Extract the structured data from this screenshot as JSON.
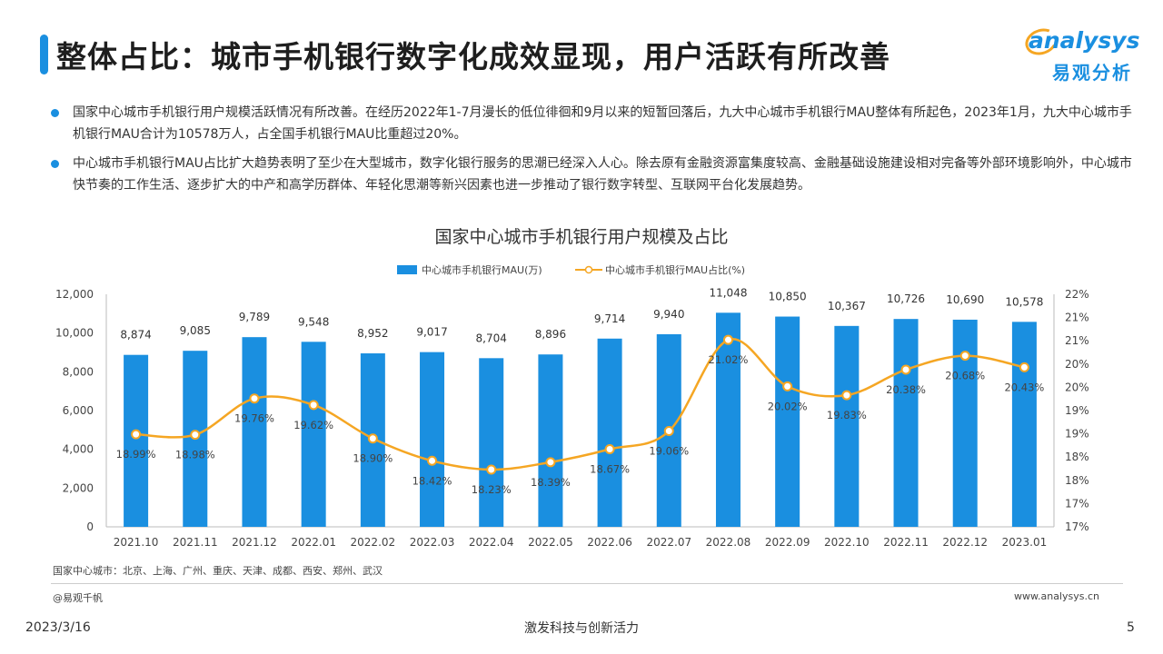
{
  "header": {
    "title": "整体占比：城市手机银行数字化成效显现，用户活跃有所改善",
    "logo_top": "analysys",
    "logo_bottom": "易观分析"
  },
  "bullets": [
    "国家中心城市手机银行用户规模活跃情况有所改善。在经历2022年1-7月漫长的低位徘徊和9月以来的短暂回落后，九大中心城市手机银行MAU整体有所起色，2023年1月，九大中心城市手机银行MAU合计为10578万人，占全国手机银行MAU比重超过20%。",
    "中心城市手机银行MAU占比扩大趋势表明了至少在大型城市，数字化银行服务的思潮已经深入人心。除去原有金融资源富集度较高、金融基础设施建设相对完备等外部环境影响外，中心城市快节奏的工作生活、逐步扩大的中产和高学历群体、年轻化思潮等新兴因素也进一步推动了银行数字转型、互联网平台化发展趋势。"
  ],
  "chart_data": {
    "type": "bar",
    "title": "国家中心城市手机银行用户规模及占比",
    "categories": [
      "2021.10",
      "2021.11",
      "2021.12",
      "2022.01",
      "2022.02",
      "2022.03",
      "2022.04",
      "2022.05",
      "2022.06",
      "2022.07",
      "2022.08",
      "2022.09",
      "2022.10",
      "2022.11",
      "2022.12",
      "2023.01"
    ],
    "series": [
      {
        "name": "中心城市手机银行MAU(万)",
        "type": "bar",
        "axis": "left",
        "color": "#1a8fe0",
        "values": [
          8874,
          9085,
          9789,
          9548,
          8952,
          9017,
          8704,
          8896,
          9714,
          9940,
          11048,
          10850,
          10367,
          10726,
          10690,
          10578
        ],
        "labels": [
          "8,874",
          "9,085",
          "9,789",
          "9,548",
          "8,952",
          "9,017",
          "8,704",
          "8,896",
          "9,714",
          "9,940",
          "11,048",
          "10,850",
          "10,367",
          "10,726",
          "10,690",
          "10,578"
        ]
      },
      {
        "name": "中心城市手机银行MAU占比(%)",
        "type": "line",
        "axis": "right",
        "color": "#f5a623",
        "values": [
          18.99,
          18.98,
          19.76,
          19.62,
          18.9,
          18.42,
          18.23,
          18.39,
          18.67,
          19.06,
          21.02,
          20.02,
          19.83,
          20.38,
          20.68,
          20.43
        ],
        "labels": [
          "18.99%",
          "18.98%",
          "19.76%",
          "19.62%",
          "18.90%",
          "18.42%",
          "18.23%",
          "18.39%",
          "18.67%",
          "19.06%",
          "21.02%",
          "20.02%",
          "19.83%",
          "20.38%",
          "20.68%",
          "20.43%"
        ]
      }
    ],
    "ylim": [
      0,
      12000
    ],
    "y_ticks": [
      "0",
      "2,000",
      "4,000",
      "6,000",
      "8,000",
      "10,000",
      "12,000"
    ],
    "y2lim": [
      17,
      22
    ],
    "y2_ticks": [
      "17%",
      "17%",
      "18%",
      "18%",
      "19%",
      "19%",
      "20%",
      "20%",
      "21%",
      "21%",
      "22%"
    ],
    "legend_position": "top-center",
    "grid": false
  },
  "footer": {
    "note": "国家中心城市：北京、上海、广州、重庆、天津、成都、西安、郑州、武汉",
    "copyright": "@易观千帆",
    "url": "www.analysys.cn",
    "date": "2023/3/16",
    "slogan": "激发科技与创新活力",
    "page_number": "5"
  }
}
